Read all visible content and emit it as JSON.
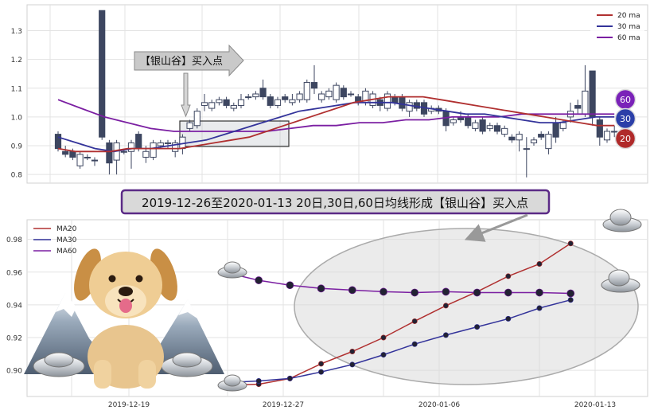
{
  "banner": {
    "text": "2019-12-26至2020-01-13 20日,30日,60日均线形成【银山谷】买入点",
    "border_color": "#5b2a86",
    "fill_color": "#d9d9d9"
  },
  "annotation": {
    "text": "【银山谷】买入点"
  },
  "badges": [
    {
      "label": "60",
      "color": "#7a22b8"
    },
    {
      "label": "30",
      "color": "#2b3fa8"
    },
    {
      "label": "20",
      "color": "#b02a2a"
    }
  ],
  "colors": {
    "ma20": "#b03030",
    "ma30": "#33339a",
    "ma60": "#7b1fa2",
    "candle": "#3d4660"
  },
  "decor_icons": [
    "silver-ingot-icon",
    "dog-icon",
    "mountain-icon"
  ],
  "chart_data": [
    {
      "type": "candlestick",
      "name": "top-panel",
      "yticks": [
        "0.8",
        "0.9",
        "1.0",
        "1.1",
        "1.2",
        "1.3"
      ],
      "ylim": [
        0.77,
        1.39
      ],
      "grid": true,
      "legend": {
        "position": "top-right",
        "entries": [
          "20 ma",
          "30 ma",
          "60 ma"
        ]
      },
      "candles": [
        [
          0.94,
          0.89,
          0.95,
          0.88
        ],
        [
          0.88,
          0.87,
          0.9,
          0.86
        ],
        [
          0.88,
          0.86,
          0.89,
          0.85
        ],
        [
          0.83,
          0.87,
          0.88,
          0.82
        ],
        [
          0.86,
          0.86,
          0.87,
          0.85
        ],
        [
          0.85,
          0.85,
          0.86,
          0.83
        ],
        [
          1.37,
          0.93,
          1.37,
          0.92
        ],
        [
          0.91,
          0.84,
          0.92,
          0.8
        ],
        [
          0.85,
          0.91,
          0.92,
          0.8
        ],
        [
          0.88,
          0.88,
          0.89,
          0.87
        ],
        [
          0.88,
          0.91,
          0.92,
          0.82
        ],
        [
          0.94,
          0.89,
          0.95,
          0.88
        ],
        [
          0.86,
          0.88,
          0.9,
          0.84
        ],
        [
          0.86,
          0.91,
          0.92,
          0.85
        ],
        [
          0.9,
          0.91,
          0.92,
          0.89
        ],
        [
          0.91,
          0.91,
          0.92,
          0.89
        ],
        [
          0.88,
          0.91,
          0.92,
          0.86
        ],
        [
          0.89,
          0.93,
          0.94,
          0.87
        ],
        [
          0.96,
          0.98,
          0.99,
          0.95
        ],
        [
          0.97,
          1.02,
          1.03,
          0.96
        ],
        [
          1.04,
          1.05,
          1.08,
          1.02
        ],
        [
          1.03,
          1.05,
          1.06,
          1.02
        ],
        [
          1.05,
          1.06,
          1.07,
          1.04
        ],
        [
          1.06,
          1.04,
          1.07,
          1.03
        ],
        [
          1.03,
          1.04,
          1.05,
          1.02
        ],
        [
          1.04,
          1.06,
          1.08,
          1.03
        ],
        [
          1.07,
          1.07,
          1.08,
          1.06
        ],
        [
          1.07,
          1.08,
          1.09,
          1.06
        ],
        [
          1.1,
          1.07,
          1.13,
          1.06
        ],
        [
          1.07,
          1.04,
          1.08,
          1.03
        ],
        [
          1.04,
          1.06,
          1.07,
          1.03
        ],
        [
          1.07,
          1.06,
          1.08,
          1.05
        ],
        [
          1.05,
          1.06,
          1.08,
          1.04
        ],
        [
          1.06,
          1.08,
          1.09,
          1.05
        ],
        [
          1.06,
          1.12,
          1.13,
          1.05
        ],
        [
          1.12,
          1.1,
          1.18,
          1.08
        ],
        [
          1.06,
          1.08,
          1.09,
          1.05
        ],
        [
          1.07,
          1.09,
          1.1,
          1.06
        ],
        [
          1.06,
          1.11,
          1.12,
          1.05
        ],
        [
          1.1,
          1.07,
          1.11,
          1.06
        ],
        [
          1.08,
          1.08,
          1.09,
          1.07
        ],
        [
          1.07,
          1.05,
          1.08,
          1.04
        ],
        [
          1.05,
          1.09,
          1.1,
          1.04
        ],
        [
          1.04,
          1.08,
          1.09,
          1.03
        ],
        [
          1.06,
          1.04,
          1.07,
          1.02
        ],
        [
          1.03,
          1.08,
          1.09,
          1.02
        ],
        [
          1.07,
          1.05,
          1.08,
          1.04
        ],
        [
          1.07,
          1.03,
          1.08,
          1.02
        ],
        [
          1.02,
          1.05,
          1.06,
          1.0
        ],
        [
          1.05,
          1.03,
          1.06,
          1.02
        ],
        [
          1.05,
          1.01,
          1.06,
          1.0
        ],
        [
          1.02,
          1.03,
          1.04,
          1.01
        ],
        [
          1.03,
          1.02,
          1.04,
          1.01
        ],
        [
          1.02,
          0.97,
          1.03,
          0.95
        ],
        [
          0.98,
          0.99,
          1.0,
          0.97
        ],
        [
          1.0,
          0.99,
          1.02,
          0.98
        ],
        [
          1.0,
          0.97,
          1.01,
          0.96
        ],
        [
          0.96,
          0.98,
          0.99,
          0.95
        ],
        [
          0.99,
          0.95,
          1.0,
          0.94
        ],
        [
          0.96,
          0.97,
          0.98,
          0.95
        ],
        [
          0.97,
          0.95,
          0.98,
          0.94
        ],
        [
          0.94,
          0.96,
          0.97,
          0.93
        ],
        [
          0.93,
          0.92,
          0.94,
          0.91
        ],
        [
          0.92,
          0.94,
          0.95,
          0.88
        ],
        [
          0.89,
          0.89,
          0.93,
          0.79
        ],
        [
          0.91,
          0.92,
          0.93,
          0.9
        ],
        [
          0.94,
          0.93,
          0.95,
          0.92
        ],
        [
          0.89,
          0.94,
          0.95,
          0.87
        ],
        [
          0.98,
          0.93,
          1.0,
          0.91
        ],
        [
          0.96,
          0.98,
          0.99,
          0.95
        ],
        [
          1.0,
          1.02,
          1.05,
          0.98
        ],
        [
          1.04,
          1.03,
          1.06,
          1.01
        ],
        [
          1.01,
          1.09,
          1.18,
          1.0
        ],
        [
          1.16,
          1.0,
          1.16,
          0.97
        ],
        [
          0.99,
          0.93,
          1.0,
          0.9
        ],
        [
          0.92,
          0.95,
          0.96,
          0.91
        ],
        [
          0.95,
          0.95,
          0.97,
          0.93
        ]
      ],
      "ma20": [
        0.89,
        0.88,
        0.88,
        0.88,
        0.89,
        0.89,
        0.89,
        0.89,
        0.9,
        0.91,
        0.92,
        0.93,
        0.95,
        0.97,
        0.99,
        1.01,
        1.03,
        1.05,
        1.06,
        1.07,
        1.07,
        1.07,
        1.06,
        1.05,
        1.04,
        1.03,
        1.02,
        1.01,
        1.0,
        0.99,
        0.98,
        0.97,
        0.97
      ],
      "ma30": [
        0.93,
        0.91,
        0.89,
        0.88,
        0.89,
        0.89,
        0.9,
        0.91,
        0.92,
        0.94,
        0.96,
        0.98,
        1.0,
        1.02,
        1.03,
        1.04,
        1.05,
        1.05,
        1.05,
        1.04,
        1.03,
        1.02,
        1.01,
        1.01,
        1.0,
        0.99,
        0.98,
        0.98,
        0.99,
        1.0,
        1.0
      ],
      "ma60": [
        1.06,
        1.03,
        1.0,
        0.98,
        0.96,
        0.95,
        0.95,
        0.95,
        0.95,
        0.95,
        0.96,
        0.97,
        0.97,
        0.98,
        0.98,
        0.99,
        0.99,
        1.0,
        1.0,
        1.0,
        1.01,
        1.01,
        1.01,
        1.01,
        1.01
      ]
    },
    {
      "type": "line",
      "name": "bottom-panel",
      "x_tick_labels": [
        "2019-12-19",
        "2019-12-27",
        "2020-01-06",
        "2020-01-13"
      ],
      "yticks": [
        "0.90",
        "0.92",
        "0.94",
        "0.96",
        "0.98"
      ],
      "ylim": [
        0.884,
        0.992
      ],
      "grid": true,
      "legend": {
        "position": "top-left",
        "entries": [
          "MA20",
          "MA30",
          "MA60"
        ]
      },
      "x": [
        "2019-12-26",
        "2019-12-27",
        "2019-12-30",
        "2019-12-31",
        "2020-01-02",
        "2020-01-03",
        "2020-01-06",
        "2020-01-07",
        "2020-01-08",
        "2020-01-09",
        "2020-01-10",
        "2020-01-13"
      ],
      "series": [
        {
          "name": "MA20",
          "values": [
            0.891,
            0.8915,
            0.895,
            0.904,
            0.9115,
            0.92,
            0.93,
            0.9395,
            0.948,
            0.9575,
            0.965,
            0.9775
          ]
        },
        {
          "name": "MA30",
          "values": [
            0.8925,
            0.8935,
            0.895,
            0.899,
            0.9035,
            0.9095,
            0.916,
            0.9215,
            0.9265,
            0.9315,
            0.938,
            0.943
          ]
        },
        {
          "name": "MA60",
          "values": [
            0.9595,
            0.955,
            0.952,
            0.95,
            0.949,
            0.948,
            0.9475,
            0.948,
            0.9475,
            0.9475,
            0.9475,
            0.947
          ]
        }
      ]
    }
  ]
}
